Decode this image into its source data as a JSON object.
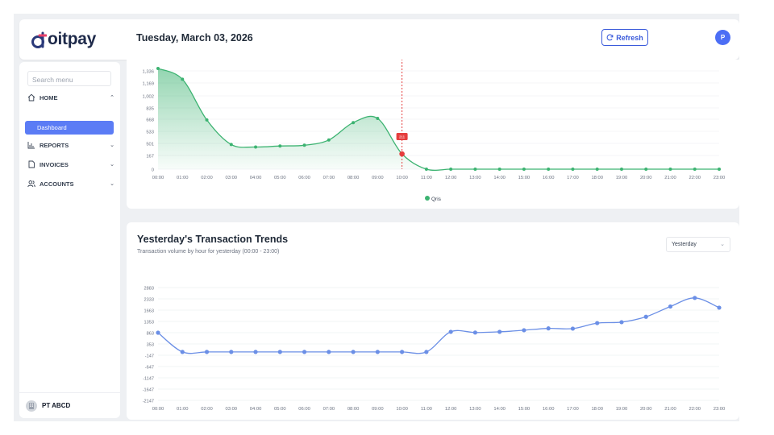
{
  "app": {
    "logo_text": "oitpay",
    "date": "Tuesday, March 03, 2026"
  },
  "header": {
    "refresh_label": "Refresh",
    "avatar_initial": "P"
  },
  "sidebar": {
    "search_placeholder": "Search menu",
    "home_label": "HOME",
    "dashboard_label": "Dashboard",
    "reports_label": "REPORTS",
    "invoices_label": "INVOICES",
    "accounts_label": "ACCOUNTS",
    "company_name": "PT ABCD"
  },
  "colors": {
    "accent": "#4c6ef5",
    "green": "#3cb371",
    "red": "#e53e3e",
    "blue": "#6b8fe6"
  },
  "chart_data": [
    {
      "type": "area",
      "title": "",
      "y_ticks": [
        "0",
        "167",
        "501",
        "533",
        "668",
        "835",
        "1,002",
        "1,169",
        "1,336"
      ],
      "ylim": [
        0,
        1336
      ],
      "x": [
        "00:00",
        "01:00",
        "02:00",
        "03:00",
        "04:00",
        "05:00",
        "06:00",
        "07:00",
        "08:00",
        "09:00",
        "10:00",
        "11:00",
        "12:00",
        "13:00",
        "14:00",
        "15:00",
        "16:00",
        "17:00",
        "18:00",
        "19:00",
        "20:00",
        "21:00",
        "22:00",
        "23:00"
      ],
      "series": [
        {
          "name": "Qris",
          "values": [
            1370,
            1220,
            660,
            470,
            400,
            430,
            450,
            510,
            630,
            680,
            211,
            0,
            0,
            0,
            0,
            0,
            0,
            0,
            0,
            0,
            0,
            0,
            0,
            0
          ]
        }
      ],
      "marker": {
        "x": "10:00",
        "label": "211"
      },
      "legend": "bottom-center"
    },
    {
      "type": "line",
      "title": "Yesterday's Transaction Trends",
      "subtitle": "Transaction volume by hour for yesterday (00:00 - 23:00)",
      "range_select": "Yesterday",
      "y_ticks": [
        "2883",
        "2333",
        "1663",
        "1353",
        "863",
        "353",
        "-147",
        "-647",
        "-1147",
        "-1647",
        "-2147"
      ],
      "ylim": [
        -2147,
        2883
      ],
      "x": [
        "00:00",
        "01:00",
        "02:00",
        "03:00",
        "04:00",
        "05:00",
        "06:00",
        "07:00",
        "08:00",
        "09:00",
        "10:00",
        "11:00",
        "12:00",
        "13:00",
        "14:00",
        "15:00",
        "16:00",
        "17:00",
        "18:00",
        "19:00",
        "20:00",
        "21:00",
        "22:00",
        "23:00"
      ],
      "series": [
        {
          "values": [
            863,
            0,
            0,
            0,
            0,
            0,
            0,
            0,
            0,
            0,
            0,
            0,
            900,
            870,
            900,
            970,
            1050,
            1040,
            1280,
            1320,
            1480,
            1880,
            2380,
            1810
          ]
        }
      ]
    }
  ]
}
